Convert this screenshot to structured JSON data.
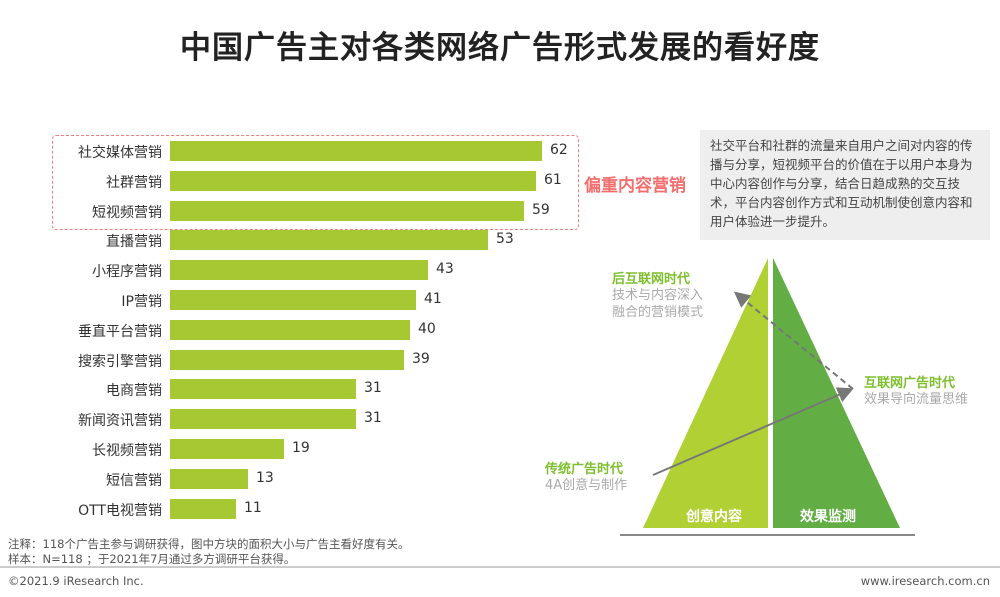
{
  "title": "中国广告主对各类网络广告形式发展的看好度",
  "chart_data": {
    "type": "bar",
    "orientation": "horizontal",
    "categories": [
      "社交媒体营销",
      "社群营销",
      "短视频营销",
      "直播营销",
      "小程序营销",
      "IP营销",
      "垂直平台营销",
      "搜索引擎营销",
      "电商营销",
      "新闻资讯营销",
      "长视频营销",
      "短信营销",
      "OTT电视营销"
    ],
    "values": [
      62,
      61,
      59,
      53,
      43,
      41,
      40,
      39,
      31,
      31,
      19,
      13,
      11
    ],
    "bar_color": "#a6c832",
    "highlight_label": "偏重内容营销"
  },
  "note": "社交平台和社群的流量来自用户之间对内容的传播与分享，短视频平台的价值在于以用户本身为中心内容创作与分享，结合日趋成熟的交互技术，平台内容创作方式和互动机制使创意内容和用户体验进一步提升。",
  "pyramid": {
    "left_label": "创意内容",
    "right_label": "效果监测",
    "left_color": "#b0d034",
    "right_color": "#62ad44",
    "eras": [
      {
        "title": "后互联网时代",
        "sub1": "技术与内容深入",
        "sub2": "融合的营销模式"
      },
      {
        "title": "互联网广告时代",
        "sub1": "效果导向流量思维"
      },
      {
        "title": "传统广告时代",
        "sub1": "4A创意与制作"
      }
    ]
  },
  "footnote1": "注释：118个广告主参与调研获得，图中方块的面积大小与广告主看好度有关。",
  "footnote2": "样本：N=118 ；于2021年7月通过多方调研平台获得。",
  "copyright": "©2021.9 iResearch Inc.",
  "website": "www.iresearch.com.cn"
}
